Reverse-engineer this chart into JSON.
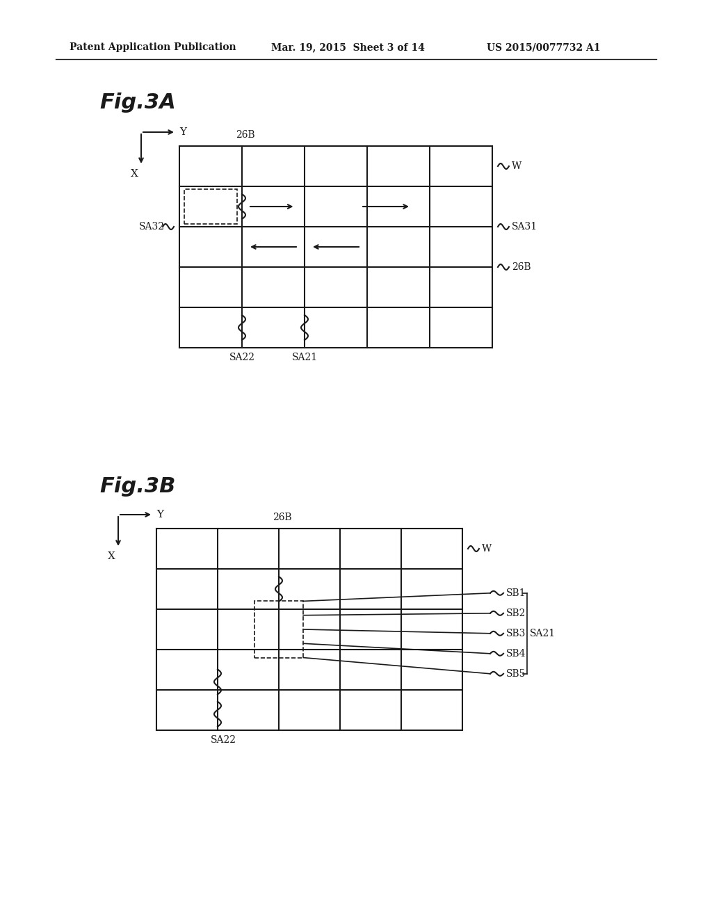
{
  "bg_color": "#ffffff",
  "text_color": "#1a1a1a",
  "header_left": "Patent Application Publication",
  "header_mid": "Mar. 19, 2015  Sheet 3 of 14",
  "header_right": "US 2015/0077732 A1",
  "fig3a_label": "Fig.3A",
  "fig3b_label": "Fig.3B"
}
